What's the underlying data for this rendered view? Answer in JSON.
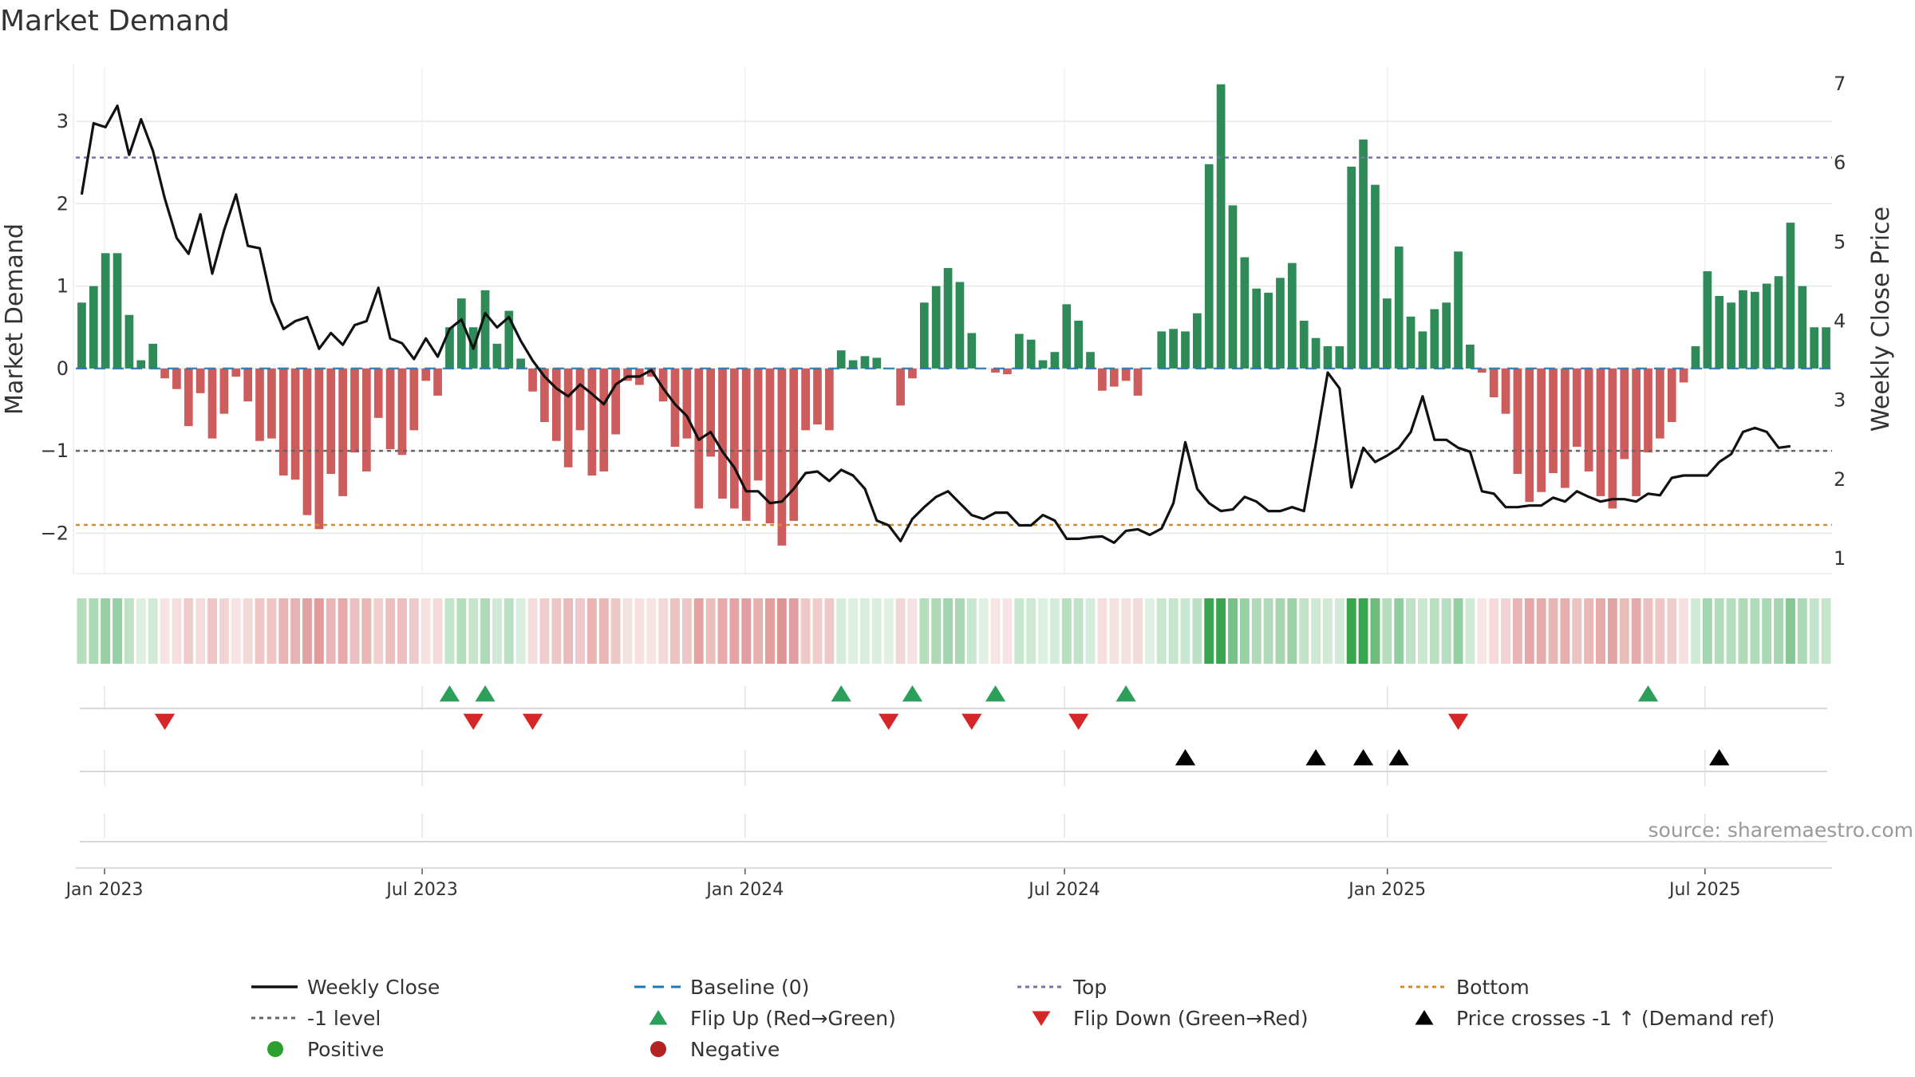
{
  "chart_data": {
    "type": "bar+line",
    "title": "Market Demand",
    "ylabel_left": "Market Demand",
    "ylabel_right": "Weekly Close Price",
    "ylim_left": [
      -2.5,
      3.65
    ],
    "ylim_right": [
      0.8,
      7.2
    ],
    "yticks_left": [
      -2,
      -1,
      0,
      1,
      2,
      3
    ],
    "yticks_right": [
      1,
      2,
      3,
      4,
      5,
      6,
      7
    ],
    "reference_lines": {
      "top": 2.56,
      "minus_one": -1,
      "bottom": -1.9,
      "baseline": 0
    },
    "x_start": "2022-12-19",
    "x_end": "2025-09-08",
    "x_tick_labels": [
      "Jan 2023",
      "Jul 2023",
      "Jan 2024",
      "Jul 2024",
      "Jan 2025",
      "Jul 2025"
    ],
    "x_tick_dates": [
      "2023-01-01",
      "2023-07-01",
      "2024-01-01",
      "2024-07-01",
      "2025-01-01",
      "2025-07-01"
    ],
    "demand": [
      0.8,
      1.0,
      1.4,
      1.4,
      0.65,
      0.1,
      0.3,
      -0.12,
      -0.25,
      -0.7,
      -0.3,
      -0.85,
      -0.55,
      -0.1,
      -0.4,
      -0.88,
      -0.85,
      -1.3,
      -1.35,
      -1.78,
      -1.95,
      -1.28,
      -1.55,
      -1.02,
      -1.25,
      -0.6,
      -0.98,
      -1.05,
      -0.75,
      -0.15,
      -0.33,
      0.5,
      0.85,
      0.5,
      0.95,
      0.3,
      0.7,
      0.12,
      -0.28,
      -0.65,
      -0.88,
      -1.2,
      -0.75,
      -1.3,
      -1.25,
      -0.8,
      -0.15,
      -0.2,
      -0.1,
      -0.4,
      -0.95,
      -0.85,
      -1.7,
      -1.07,
      -1.58,
      -1.7,
      -1.85,
      -1.36,
      -1.88,
      -2.15,
      -1.85,
      -0.75,
      -0.68,
      -0.75,
      0.22,
      0.1,
      0.15,
      0.13,
      0.0,
      -0.45,
      -0.12,
      0.8,
      1.0,
      1.22,
      1.05,
      0.43,
      0.0,
      -0.05,
      -0.07,
      0.42,
      0.35,
      0.1,
      0.2,
      0.78,
      0.58,
      0.2,
      -0.27,
      -0.22,
      -0.15,
      -0.33,
      0.0,
      0.45,
      0.48,
      0.45,
      0.67,
      2.48,
      3.45,
      1.98,
      1.35,
      0.97,
      0.92,
      1.1,
      1.28,
      0.58,
      0.37,
      0.27,
      0.27,
      2.45,
      2.78,
      2.23,
      0.85,
      1.48,
      0.63,
      0.45,
      0.72,
      0.8,
      1.42,
      0.29,
      -0.05,
      -0.35,
      -0.55,
      -1.28,
      -1.62,
      -1.5,
      -1.27,
      -1.45,
      -0.95,
      -1.25,
      -1.55,
      -1.7,
      -1.1,
      -1.55,
      -1.02,
      -0.85,
      -0.65,
      -0.17,
      0.27,
      1.18,
      0.88,
      0.8,
      0.95,
      0.93,
      1.03,
      1.12,
      1.77,
      1.0,
      0.5,
      0.5
    ],
    "weekly_close": [
      5.6,
      6.5,
      6.45,
      6.72,
      6.1,
      6.55,
      6.15,
      5.55,
      5.05,
      4.85,
      5.35,
      4.6,
      5.15,
      5.6,
      4.95,
      4.92,
      4.25,
      3.9,
      4.0,
      4.05,
      3.65,
      3.85,
      3.7,
      3.95,
      4.0,
      4.42,
      3.78,
      3.72,
      3.52,
      3.78,
      3.55,
      3.9,
      4.02,
      3.65,
      4.1,
      3.92,
      4.05,
      3.75,
      3.5,
      3.3,
      3.15,
      3.05,
      3.2,
      3.08,
      2.95,
      3.2,
      3.3,
      3.3,
      3.38,
      3.15,
      2.95,
      2.8,
      2.5,
      2.6,
      2.35,
      2.15,
      1.85,
      1.85,
      1.7,
      1.72,
      1.88,
      2.08,
      2.1,
      1.98,
      2.12,
      2.05,
      1.88,
      1.48,
      1.42,
      1.22,
      1.5,
      1.65,
      1.78,
      1.85,
      1.7,
      1.55,
      1.5,
      1.58,
      1.58,
      1.42,
      1.42,
      1.55,
      1.48,
      1.25,
      1.25,
      1.27,
      1.28,
      1.2,
      1.35,
      1.37,
      1.3,
      1.38,
      1.7,
      2.47,
      1.88,
      1.7,
      1.6,
      1.62,
      1.78,
      1.72,
      1.6,
      1.6,
      1.65,
      1.6,
      2.45,
      3.35,
      3.15,
      1.9,
      2.4,
      2.22,
      2.3,
      2.4,
      2.6,
      3.05,
      2.5,
      2.5,
      2.4,
      2.35,
      1.85,
      1.82,
      1.65,
      1.65,
      1.67,
      1.67,
      1.77,
      1.72,
      1.85,
      1.78,
      1.72,
      1.75,
      1.75,
      1.72,
      1.82,
      1.8,
      2.02,
      2.05,
      2.05,
      2.05,
      2.22,
      2.32,
      2.6,
      2.65,
      2.6,
      2.4,
      2.42
    ],
    "flip_up_weeks": [
      31,
      34,
      64,
      70,
      77,
      88,
      132
    ],
    "flip_down_weeks": [
      7,
      33,
      38,
      68,
      75,
      84,
      116
    ],
    "price_cross_weeks": [
      93,
      104,
      108,
      111,
      138
    ],
    "source": "source: sharemaestro.com",
    "legend": [
      {
        "label": "Weekly Close",
        "symbol": "line",
        "color": "#111111"
      },
      {
        "label": "Baseline (0)",
        "symbol": "dash",
        "color": "#1f77b4"
      },
      {
        "label": "Top",
        "symbol": "dot",
        "color": "#7b6fb0"
      },
      {
        "label": "Bottom",
        "symbol": "dot",
        "color": "#e08a1e"
      },
      {
        "label": "-1 level",
        "symbol": "dot",
        "color": "#666666"
      },
      {
        "label": "Flip Up (Red→Green)",
        "symbol": "triangle-up",
        "color": "#2ca05a"
      },
      {
        "label": "Flip Down (Green→Red)",
        "symbol": "triangle-down",
        "color": "#d62728"
      },
      {
        "label": "Price crosses -1 ↑ (Demand ref)",
        "symbol": "triangle-up",
        "color": "#000000"
      },
      {
        "label": "Positive",
        "symbol": "circle",
        "color": "#2ca02c"
      },
      {
        "label": "Negative",
        "symbol": "circle",
        "color": "#b22222"
      }
    ]
  },
  "colors": {
    "positive_bar": "#2e8b57",
    "negative_bar": "#cd5c5c",
    "price_line": "#111111",
    "grid": "#e6e6e6"
  }
}
